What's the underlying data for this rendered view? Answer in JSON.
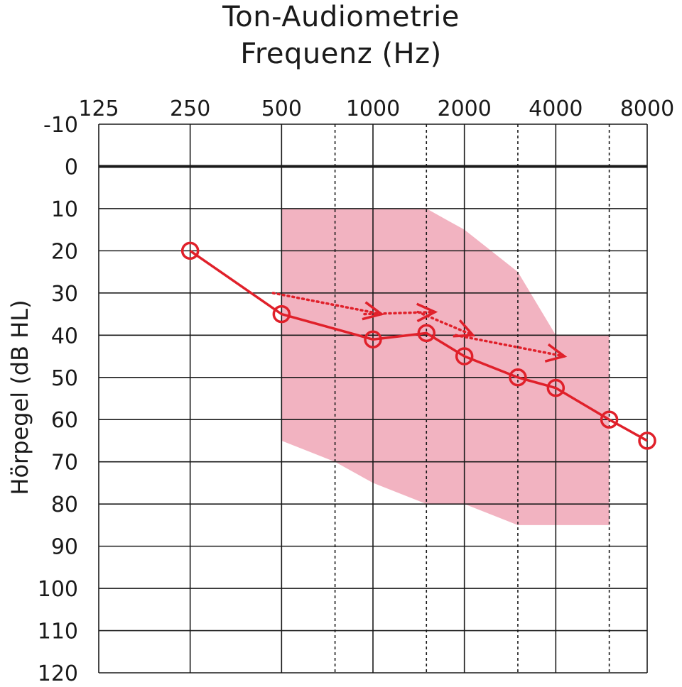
{
  "chart_data": {
    "type": "line",
    "title": "Ton-Audiometrie",
    "subtitle": "Frequenz (Hz)",
    "xlabel": "Frequenz (Hz)",
    "ylabel": "Hörpegel (dB HL)",
    "x_scale": "log2",
    "x_ticks": [
      {
        "value": 125,
        "label": "125"
      },
      {
        "value": 250,
        "label": "250"
      },
      {
        "value": 500,
        "label": "500"
      },
      {
        "value": 1000,
        "label": "1000"
      },
      {
        "value": 2000,
        "label": "2000"
      },
      {
        "value": 4000,
        "label": "4000"
      },
      {
        "value": 8000,
        "label": "8000"
      }
    ],
    "x_dashed_gridlines": [
      750,
      1500,
      3000,
      6000
    ],
    "y_ticks": [
      -10,
      0,
      10,
      20,
      30,
      40,
      50,
      60,
      70,
      80,
      90,
      100,
      110,
      120
    ],
    "ylim": [
      -10,
      120
    ],
    "y_inverted": true,
    "xlim": [
      125,
      8000
    ],
    "colors": {
      "accent": "#e0202a",
      "band": "#f2b3c1",
      "grid": "#1a1a1a"
    },
    "band": {
      "name": "shaded region",
      "upper": [
        [
          500,
          10
        ],
        [
          1500,
          10
        ],
        [
          2000,
          15
        ],
        [
          3000,
          25
        ],
        [
          4000,
          40
        ],
        [
          6000,
          40
        ]
      ],
      "lower": [
        [
          500,
          65
        ],
        [
          750,
          70
        ],
        [
          1000,
          75
        ],
        [
          1500,
          80
        ],
        [
          2000,
          80
        ],
        [
          3000,
          85
        ],
        [
          6000,
          85
        ]
      ]
    },
    "series": [
      {
        "name": "threshold",
        "style": "solid-circles",
        "x": [
          250,
          500,
          1000,
          1500,
          2000,
          3000,
          4000,
          6000,
          8000
        ],
        "y": [
          20,
          35,
          41,
          39.5,
          45,
          50,
          52.5,
          60,
          65
        ]
      }
    ],
    "arrows": [
      {
        "x": [
          500,
          1000
        ],
        "y": [
          30,
          35
        ]
      },
      {
        "x": [
          1000,
          1500
        ],
        "y": [
          35,
          34.5
        ]
      },
      {
        "x": [
          1500,
          2000
        ],
        "y": [
          34.5,
          40
        ]
      },
      {
        "x": [
          2000,
          4000
        ],
        "y": [
          40,
          45
        ]
      }
    ]
  }
}
